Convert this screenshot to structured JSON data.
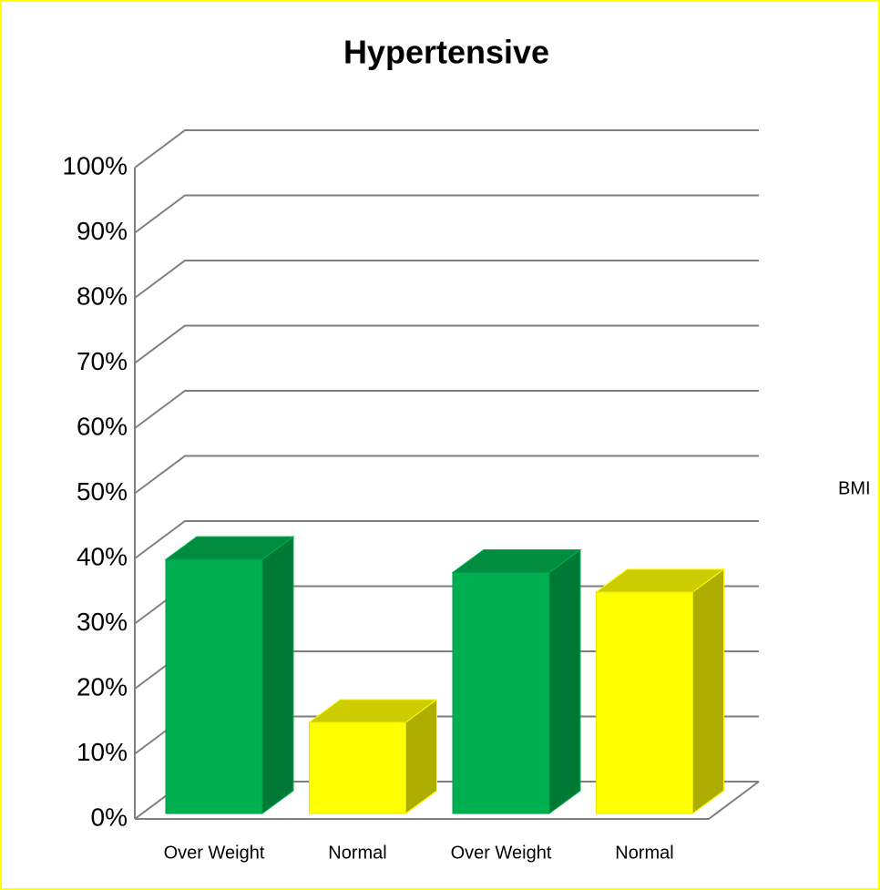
{
  "chart_data": {
    "type": "bar3d",
    "title": "Hypertensive",
    "categories": [
      "Over Weight",
      "Normal",
      "Over Weight",
      "Normal"
    ],
    "values": [
      39,
      14,
      37,
      34
    ],
    "colors": [
      "#00b050",
      "#ffff00",
      "#00b050",
      "#ffff00"
    ],
    "annotation": "BMI",
    "ylim": [
      0,
      100
    ],
    "yticks": [
      {
        "value": 0,
        "label": "0%"
      },
      {
        "value": 10,
        "label": "10%"
      },
      {
        "value": 20,
        "label": "20%"
      },
      {
        "value": 30,
        "label": "30%"
      },
      {
        "value": 40,
        "label": "40%"
      },
      {
        "value": 50,
        "label": "50%"
      },
      {
        "value": 60,
        "label": "60%"
      },
      {
        "value": 70,
        "label": "70%"
      },
      {
        "value": 80,
        "label": "80%"
      },
      {
        "value": 90,
        "label": "90%"
      },
      {
        "value": 100,
        "label": "100%"
      }
    ],
    "grid": true
  }
}
